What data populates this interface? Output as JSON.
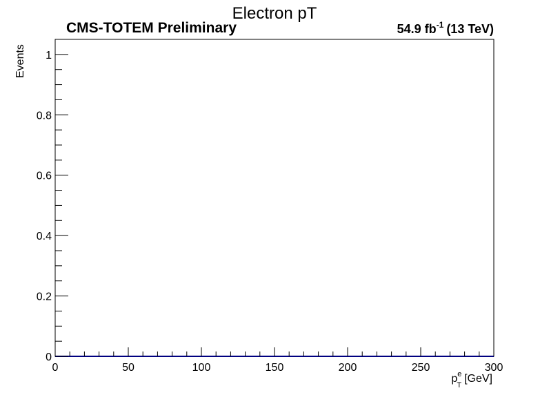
{
  "chart_data": {
    "type": "line",
    "title": "Electron pT",
    "experiment_label": "CMS-TOTEM Preliminary",
    "lumi_value": "54.9 fb",
    "lumi_exponent": "-1",
    "lumi_energy": "(13 TeV)",
    "ylabel": "Events",
    "xlabel_base": "p",
    "xlabel_superscript": "e",
    "xlabel_subscript": "T",
    "xlabel_unit": "[GeV]",
    "xlim": [
      0,
      300
    ],
    "ylim": [
      0,
      1.05
    ],
    "x_ticks": [
      0,
      50,
      100,
      150,
      200,
      250,
      300
    ],
    "x_tick_labels": [
      "0",
      "50",
      "100",
      "150",
      "200",
      "250",
      "300"
    ],
    "y_ticks": [
      0,
      0.2,
      0.4,
      0.6,
      0.8,
      1
    ],
    "y_tick_labels": [
      "0",
      "0.2",
      "0.4",
      "0.6",
      "0.8",
      "1"
    ],
    "grid": false,
    "series": [
      {
        "color": "#000080",
        "x": [
          0,
          300
        ],
        "y": [
          0,
          0
        ]
      }
    ]
  }
}
